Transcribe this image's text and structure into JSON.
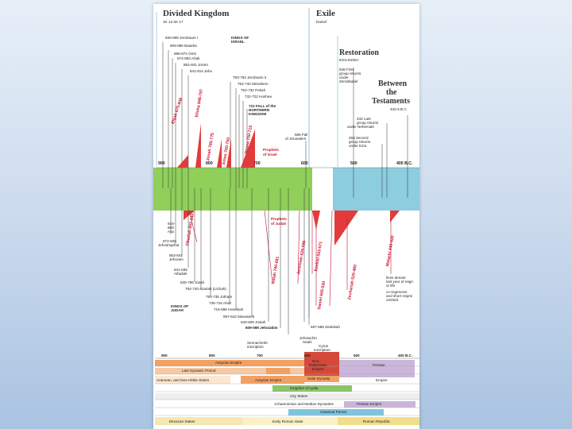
{
  "headers": {
    "divided_title": "Divided Kingdom",
    "divided_ref": "1K 12-2K 17",
    "exile_title": "Exile",
    "exile_sub": "Daniel",
    "restoration_title": "Restoration",
    "restoration_sub": "Ezra-Esther",
    "between_line1": "Between",
    "between_line2": "the",
    "between_line3": "Testaments",
    "between_sub": "432-5 B.C."
  },
  "israel_label": [
    "KINGS OF",
    "ISRAEL"
  ],
  "judah_label": [
    "KINGS OF",
    "JUDAH"
  ],
  "israel_kings": [
    "930-909 Jeroboam I",
    "909-886 Baasha",
    "885-874 Omri",
    "874-853 Ahab",
    "852-841 Joram",
    "841-814 Jehu",
    "793-753 Jeroboam II",
    "752-742 Menahem",
    "752-732 Pekah",
    "732-722 Hoshea"
  ],
  "fall_israel": [
    "722 FALL of the",
    "NORTHERN",
    "KINGDOM"
  ],
  "fall_jerusalem": [
    "586 Fall",
    "of Jerusalem"
  ],
  "restoration_notes": [
    [
      "538 First",
      "group returns",
      "under",
      "Zerubbabel"
    ],
    [
      "458 Second",
      "group returns",
      "under Ezra"
    ],
    [
      "432 Last",
      "group returns",
      "under Nehemiah"
    ]
  ],
  "prophets_israel_label": [
    "Prophets",
    "of Israel"
  ],
  "prophets_judah_label": [
    "Prophets",
    "of Judah"
  ],
  "israel_prophets": [
    "Elijah 875-848",
    "Elisha 848-797",
    "Jonah 785-775",
    "Amos 760-750",
    "Hosea 750-715"
  ],
  "judah_prophets": [
    "Obadiah 855-840?",
    "Isaiah 740-681",
    "Jeremiah 626-585",
    "Ezekiel 593-571",
    "Daniel 605-530",
    "Zechariah 520-480",
    "Malachi 440-430"
  ],
  "judah_kings": [
    [
      "916-",
      "869",
      "Asa"
    ],
    [
      "872-848",
      "Jehoshaphat"
    ],
    [
      "853-841",
      "Jehoram"
    ],
    [
      "841-835",
      "Athaliah"
    ],
    [
      "835-796 Joash"
    ],
    [
      "792-740 Azariah (Uzziah)"
    ],
    [
      "750-735 Jotham"
    ],
    [
      "735-715 Ahaz"
    ],
    [
      "715-686 Hezekiah"
    ],
    [
      "697-642 Manasseh"
    ],
    [
      "640-609 Josiah"
    ],
    [
      "609-598 Jehoiakim"
    ],
    [
      "597-586 Zedekiah"
    ]
  ],
  "footnote": [
    "lines denote",
    "last year of reign",
    "or life",
    "co-regencies",
    "and short reigns",
    "omitted"
  ],
  "axis_top": [
    "900",
    "800",
    "700",
    "600",
    "500",
    "400 B.C."
  ],
  "axis_bottom": [
    "900",
    "800",
    "700",
    "600",
    "500",
    "400 B.C."
  ],
  "bottom_annotations": {
    "sennacherib": [
      "Sennacherib",
      "inscription"
    ],
    "jehoiachin": [
      "Jehoiachin",
      "Seals"
    ],
    "cyrus": [
      "Cyrus",
      "inscription"
    ]
  },
  "empires": {
    "assyrian": "Assyrian Empire",
    "neo_babylonian": [
      "Neo-",
      "Babylonian",
      "Empire"
    ],
    "persian": "Persian",
    "late_dynastic": "Late Dynastic Period",
    "saite": "Saite Dynasty",
    "aramean": "Aramean, and Neo-Hittite States",
    "assyrian2": "Assyrian Empire",
    "empire": "Empire",
    "lydia": "Kingdom of Lydia",
    "city_states": "City States",
    "achaemenian": "Achaemenian and Median Dynasties",
    "persian_empire": "Persian Empire",
    "classical": "Classical Period",
    "etruscan": "Etruscan States",
    "early_roman": "Early Roman State",
    "roman_republic": "Roman Republic"
  },
  "colors": {
    "green_band": "#8fcf5a",
    "blue_band": "#8ccde0",
    "prophet_red": "#e23b3b",
    "assyrian_orange": "#f2a163",
    "babylon_red": "#d4493a",
    "persian_purple": "#c9b6d9",
    "lydia_green": "#8ac56a",
    "classical_blue": "#7fc3df",
    "roman_yellow": "#f3dd8a"
  }
}
